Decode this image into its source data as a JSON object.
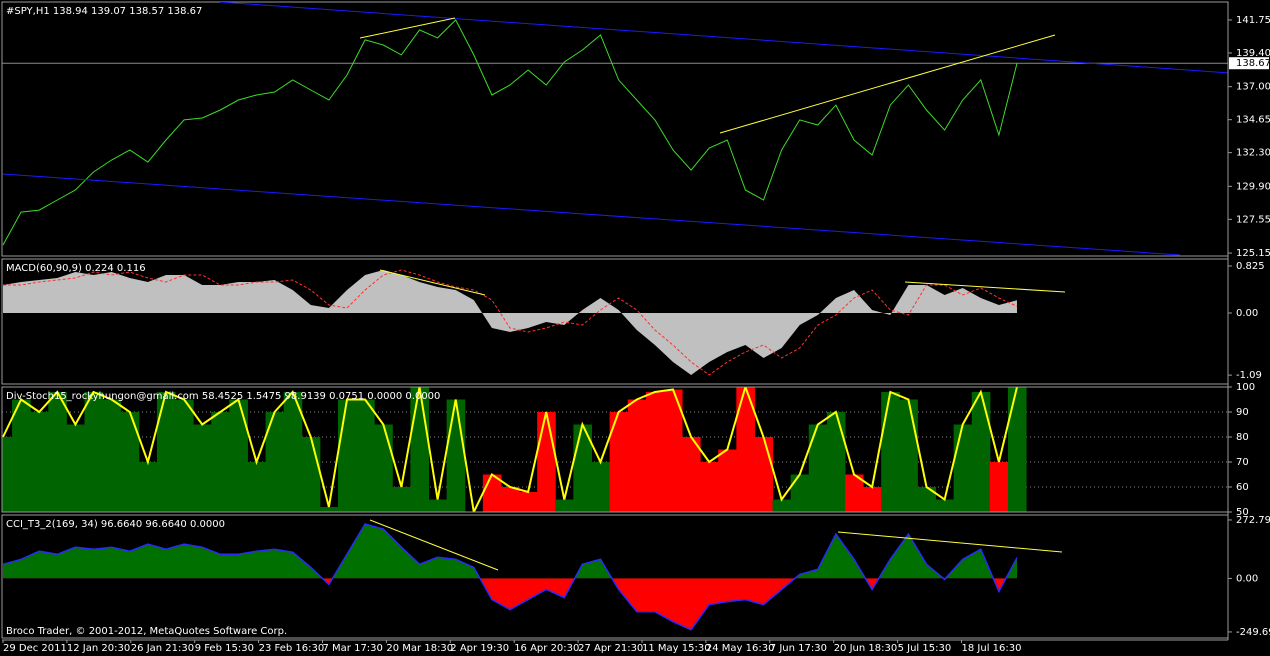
{
  "chart_data": [
    {
      "type": "line",
      "title": "#SPY,H1  138.94 139.07 138.57 138.67",
      "color": "#3cdc28",
      "values": [
        125.72,
        128.07,
        128.21,
        128.93,
        129.64,
        130.92,
        131.78,
        132.49,
        131.63,
        133.2,
        134.63,
        134.77,
        135.34,
        136.05,
        136.41,
        136.62,
        137.48,
        136.76,
        136.05,
        137.83,
        140.33,
        139.97,
        139.26,
        141.04,
        140.47,
        141.75,
        139.26,
        136.41,
        137.12,
        138.19,
        137.12,
        138.76,
        139.61,
        140.68,
        137.48,
        136.05,
        134.63,
        132.49,
        131.06,
        132.63,
        133.2,
        129.64,
        128.93,
        132.49,
        134.63,
        134.27,
        135.69,
        133.2,
        132.13,
        135.69,
        137.12,
        135.34,
        133.91,
        136.05,
        137.48,
        133.56,
        138.67
      ],
      "ylim": [
        124.94,
        143.03
      ],
      "yticks": [
        141.75,
        {
          "value": 139.4,
          "label": "139.40"
        },
        {
          "value": 137,
          "label": "137.00"
        },
        134.65,
        {
          "value": 132.3,
          "label": "132.30"
        },
        {
          "value": 129.9,
          "label": "129.90"
        },
        127.55,
        125.15
      ],
      "last_label": "138.67"
    },
    {
      "type": "area",
      "title": "MACD(60,90,9) 0.224 0.116",
      "series": [
        {
          "color": "#c0c0c0",
          "fill": true,
          "values": [
            0.491,
            0.544,
            0.579,
            0.614,
            0.72,
            0.667,
            0.72,
            0.614,
            0.544,
            0.667,
            0.667,
            0.491,
            0.491,
            0.544,
            0.544,
            0.579,
            0.404,
            0.14,
            0.088,
            0.404,
            0.667,
            0.755,
            0.667,
            0.544,
            0.456,
            0.404,
            0.228,
            -0.263,
            -0.333,
            -0.263,
            -0.158,
            -0.211,
            0.053,
            0.263,
            0.053,
            -0.298,
            -0.562,
            -0.86,
            -1.088,
            -0.86,
            -0.684,
            -0.562,
            -0.79,
            -0.614,
            -0.211,
            -0.035,
            0.263,
            0.404,
            0.053,
            -0.035,
            0.491,
            0.491,
            0.316,
            0.439,
            0.263,
            0.14,
            0.224
          ]
        },
        {
          "color": "#ff3030",
          "dashed": true,
          "values": [
            0.491,
            0.491,
            0.544,
            0.579,
            0.614,
            0.72,
            0.667,
            0.72,
            0.614,
            0.544,
            0.667,
            0.667,
            0.491,
            0.491,
            0.544,
            0.544,
            0.579,
            0.404,
            0.14,
            0.088,
            0.404,
            0.667,
            0.755,
            0.667,
            0.544,
            0.456,
            0.404,
            0.228,
            -0.263,
            -0.333,
            -0.263,
            -0.158,
            -0.211,
            0.053,
            0.263,
            0.053,
            -0.298,
            -0.562,
            -0.86,
            -1.088,
            -0.86,
            -0.684,
            -0.562,
            -0.79,
            -0.614,
            -0.211,
            -0.035,
            0.263,
            0.404,
            0.053,
            -0.035,
            0.491,
            0.491,
            0.316,
            0.439,
            0.263,
            0.116
          ]
        }
      ],
      "ylim": [
        -1.246,
        0.948
      ],
      "yticks": [
        0.825,
        {
          "value": 0,
          "label": "0.00"
        },
        -1.09
      ]
    },
    {
      "type": "bar",
      "title": "Div-Stoch15_rockyhungon@gmail.com 58.4525 1.5475 98.9139 0.0751 0.0000 0.0000",
      "series": [
        {
          "color": "#ffff00",
          "values": [
            80,
            95,
            90,
            98,
            85,
            98,
            95,
            90,
            70,
            98,
            95,
            85,
            90,
            95,
            70,
            90,
            98,
            80,
            52,
            95,
            95,
            85,
            60,
            100,
            55,
            95,
            50,
            65,
            60,
            58,
            90,
            55,
            85,
            70,
            90,
            95,
            98,
            99,
            80,
            70,
            75,
            100,
            80,
            55,
            65,
            85,
            90,
            65,
            60,
            98,
            95,
            60,
            55,
            85,
            98,
            70,
            100
          ],
          "fill_colors": [
            "#006400",
            "#006400",
            "#006400",
            "#006400",
            "#006400",
            "#006400",
            "#006400",
            "#006400",
            "#006400",
            "#006400",
            "#006400",
            "#006400",
            "#006400",
            "#006400",
            "#006400",
            "#006400",
            "#006400",
            "#006400",
            "#006400",
            "#006400",
            "#006400",
            "#006400",
            "#006400",
            "#006400",
            "#006400",
            "#006400",
            "#ff0000",
            "#ff0000",
            "#ff0000",
            "#ff0000",
            "#ff0000",
            "#006400",
            "#006400",
            "#006400",
            "#ff0000",
            "#ff0000",
            "#ff0000",
            "#ff0000",
            "#ff0000",
            "#ff0000",
            "#ff0000",
            "#ff0000",
            "#ff0000",
            "#006400",
            "#006400",
            "#006400",
            "#006400",
            "#ff0000",
            "#ff0000",
            "#006400",
            "#006400",
            "#006400",
            "#006400",
            "#006400",
            "#006400",
            "#ff0000",
            "#006400"
          ]
        }
      ],
      "ylim": [
        50,
        100
      ],
      "yticks": [
        100,
        90,
        80,
        70,
        60,
        50
      ],
      "grid": true
    },
    {
      "type": "area",
      "title": "CCI_T3_2(169, 34) 96.6640 96.6640 0.0000",
      "series": [
        {
          "color": "#2a2aff",
          "above_color": "#007000",
          "below_color": "#ff0000",
          "values": [
            65.8,
            89.3,
            126.9,
            112.8,
            145.7,
            136.3,
            145.7,
            126.9,
            159.8,
            136.3,
            159.8,
            145.7,
            112.8,
            112.8,
            126.9,
            136.3,
            122.2,
            51.7,
            -28.2,
            112.8,
            253.8,
            230.3,
            145.7,
            65.8,
            98.7,
            89.3,
            51.7,
            -98.7,
            -145.7,
            -98.7,
            -51.7,
            -89.3,
            65.8,
            89.3,
            -51.7,
            -155.1,
            -155.1,
            -202.1,
            -239.7,
            -122.2,
            -108.1,
            -98.7,
            -122.2,
            -51.7,
            18.8,
            42.3,
            206.8,
            89.3,
            -51.7,
            89.3,
            206.8,
            65.8,
            -4.7,
            89.3,
            136.3,
            -61.1,
            96.664
          ]
        }
      ],
      "ylim": [
        -278,
        296
      ],
      "yticks": [
        272.794,
        {
          "value": 0,
          "label": "0.00"
        },
        -249.693
      ],
      "footer": "Broco Trader, © 2001-2012, MetaQuotes Software Corp."
    }
  ],
  "time_labels": [
    "29 Dec 2011",
    "12 Jan 20:30",
    "26 Jan 21:30",
    "9 Feb 15:30",
    "23 Feb 16:30",
    "7 Mar 17:30",
    "20 Mar 18:30",
    "2 Apr 19:30",
    "16 Apr 20:30",
    "27 Apr 21:30",
    "11 May 15:30",
    "24 May 16:30",
    "7 Jun 17:30",
    "20 Jun 18:30",
    "5 Jul 15:30",
    "18 Jul 16:30"
  ]
}
